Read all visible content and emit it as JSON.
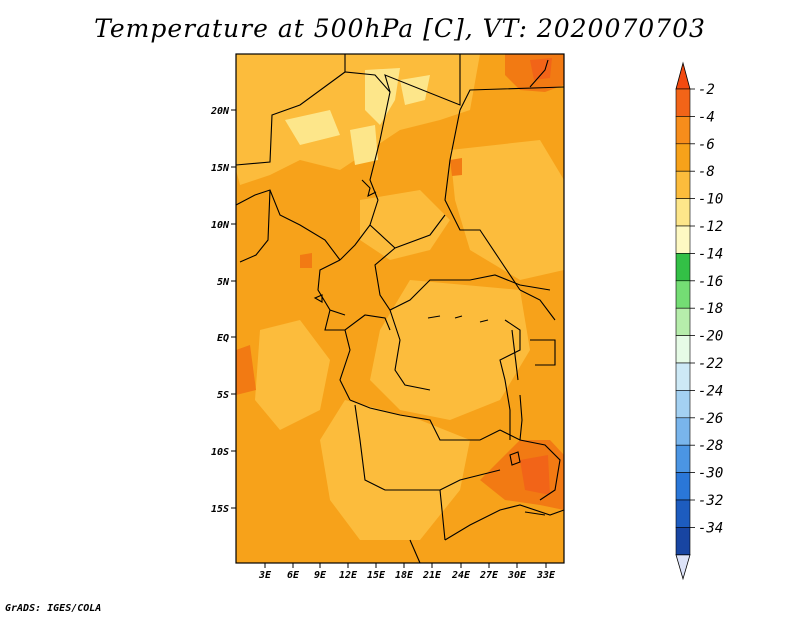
{
  "title": "Temperature at 500hPa [C], VT: 2020070703",
  "credit": "GrADS: IGES/COLA",
  "map": {
    "lon_ticks": [
      "3E",
      "6E",
      "9E",
      "12E",
      "15E",
      "18E",
      "21E",
      "24E",
      "27E",
      "30E",
      "33E"
    ],
    "lat_ticks": [
      "20N",
      "15N",
      "10N",
      "5N",
      "EQ",
      "5S",
      "10S",
      "15S"
    ],
    "base_color": "#f7a21a",
    "layers": [
      {
        "name": "warm-patch",
        "color": "#f7a21a"
      },
      {
        "name": "cool-patch",
        "color": "#fcbc3c"
      },
      {
        "name": "pale-patch",
        "color": "#fde68a"
      },
      {
        "name": "hot-patch",
        "color": "#f27a13"
      }
    ]
  },
  "colorbar": {
    "labels": [
      "-2",
      "-4",
      "-6",
      "-8",
      "-10",
      "-12",
      "-14",
      "-16",
      "-18",
      "-20",
      "-22",
      "-24",
      "-26",
      "-28",
      "-30",
      "-32",
      "-34"
    ],
    "colors": [
      "#f26418",
      "#f78d1b",
      "#f7a21a",
      "#fcbc3c",
      "#fde68a",
      "#fef9c3",
      "#33c046",
      "#74dd74",
      "#b6edab",
      "#e6fbe6",
      "#cde9f6",
      "#a4d1f2",
      "#79b5ec",
      "#4b95e3",
      "#2a77d8",
      "#1d5cbf",
      "#1845a2"
    ],
    "top_triangle_color": "#f24a10",
    "bottom_triangle_color": "#dde3f8",
    "top_segment_color": "#0b1b6d"
  }
}
